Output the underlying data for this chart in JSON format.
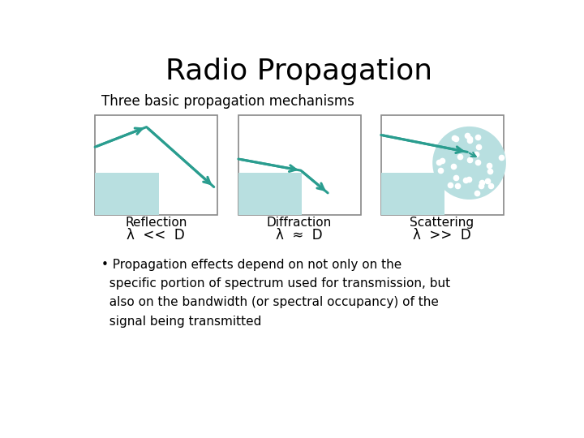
{
  "title": "Radio Propagation",
  "subtitle": "Three basic propagation mechanisms",
  "panel_bg": "#ffffff",
  "teal_color": "#2a9d8f",
  "light_teal": "#b8dfe0",
  "labels": [
    "Reflection",
    "Diffraction",
    "Scattering"
  ],
  "equations": [
    "λ  <<  D",
    "λ  ≈  D",
    "λ  >>  D"
  ],
  "body_text": "• Propagation effects depend on not only on the\n  specific portion of spectrum used for transmission, but\n  also on the bandwidth (or spectral occupancy) of the\n  signal being transmitted",
  "title_fontsize": 26,
  "subtitle_fontsize": 12,
  "label_fontsize": 11,
  "eq_fontsize": 12,
  "body_fontsize": 11
}
